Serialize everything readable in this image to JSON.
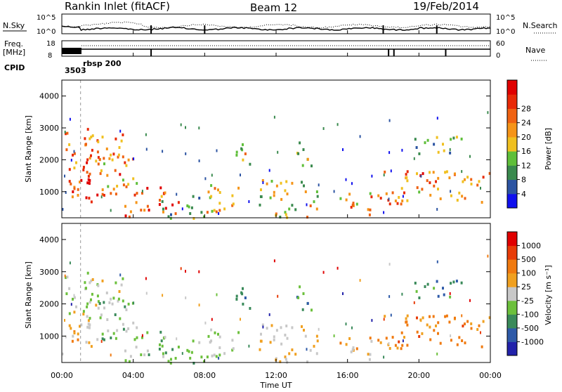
{
  "header": {
    "title": "Rankin Inlet (fitACF)",
    "beam": "Beam 12",
    "date": "19/Feb/2014"
  },
  "colors": {
    "ink": "#000000",
    "background": "#ffffff",
    "marker": "#9a9a9a"
  },
  "chart_data": [
    {
      "panel": "noise",
      "type": "line",
      "left_labels": [
        "N.Sky",
        "10^5",
        "10^0"
      ],
      "right_labels": [
        "10^5",
        "10^0",
        "N.Search"
      ],
      "series": [
        {
          "name": "N.Sky",
          "style": "solid"
        },
        {
          "name": "N.Search",
          "style": "dotted"
        }
      ]
    },
    {
      "panel": "frequency",
      "type": "line",
      "left_labels": [
        "Freq.",
        "[MHz]",
        "18",
        "8"
      ],
      "right_labels": [
        "60",
        "0",
        "Nave"
      ],
      "series": [
        {
          "name": "Freq.",
          "style": "solid"
        },
        {
          "name": "Nave",
          "style": "dotted"
        }
      ]
    },
    {
      "panel": "cpid",
      "type": "annotation",
      "label": "CPID",
      "entries": [
        {
          "time_h": 0.6,
          "text": "3503"
        },
        {
          "time_h": 1.0,
          "text": "rbsp  200"
        }
      ]
    },
    {
      "panel": "power",
      "type": "heatmap",
      "ylabel": "Slant Range [km]",
      "ylim": [
        180,
        4500
      ],
      "yticks": [
        "1000",
        "2000",
        "3000",
        "4000"
      ],
      "xlim": [
        0,
        24
      ],
      "colorbar_label": "Power [dB]",
      "colorbar_ticks": [
        "4",
        "8",
        "12",
        "16",
        "20",
        "24",
        "28"
      ],
      "colorbar_range": [
        0,
        30
      ],
      "colorbar_colors": [
        "#1010ee",
        "#2c54a2",
        "#3a8a4e",
        "#5fbf3a",
        "#f0c020",
        "#f59418",
        "#ef6212",
        "#e82a08",
        "#e00000"
      ]
    },
    {
      "panel": "velocity",
      "type": "heatmap",
      "ylabel": "Slant Range [km]",
      "ylim": [
        180,
        4500
      ],
      "yticks": [
        "1000",
        "2000",
        "3000",
        "4000"
      ],
      "xlim": [
        0,
        24
      ],
      "colorbar_label": "Velocity [m s⁻¹]",
      "colorbar_ticks": [
        "1000",
        "500",
        "100",
        "25",
        "-25",
        "-100",
        "-500",
        "-1000"
      ],
      "colorbar_colors": [
        "#2222aa",
        "#2e5aa8",
        "#3a8a5a",
        "#6cc03c",
        "#c8c8c8",
        "#f0a020",
        "#f07a10",
        "#e83c08",
        "#e00000"
      ]
    }
  ],
  "time_axis": {
    "xlabel": "Time UT",
    "ticks": [
      "00:00",
      "04:00",
      "08:00",
      "12:00",
      "16:00",
      "20:00",
      "00:00"
    ],
    "tick_hours": [
      0,
      4,
      8,
      12,
      16,
      20,
      24
    ]
  },
  "echo_regions": [
    {
      "t0": 0.0,
      "t1": 2.0,
      "r0": 700,
      "r1": 1900,
      "level": 0.85,
      "vel": -0.2
    },
    {
      "t0": 0.0,
      "t1": 3.5,
      "r0": 1500,
      "r1": 3000,
      "level": 0.7,
      "vel": 0.1
    },
    {
      "t0": 2.0,
      "t1": 4.2,
      "r0": 800,
      "r1": 2200,
      "level": 0.6,
      "vel": 0.2
    },
    {
      "t0": 3.5,
      "t1": 6.5,
      "r0": 200,
      "r1": 1200,
      "level": 0.85,
      "vel": 0.25
    },
    {
      "t0": 5.5,
      "t1": 8.0,
      "r0": 200,
      "r1": 900,
      "level": 0.35,
      "vel": 0.3
    },
    {
      "t0": 8.0,
      "t1": 10.0,
      "r0": 200,
      "r1": 1300,
      "level": 0.55,
      "vel": 0.1
    },
    {
      "t0": 9.5,
      "t1": 10.5,
      "r0": 1800,
      "r1": 2700,
      "level": 0.5,
      "vel": 0.6
    },
    {
      "t0": 11.0,
      "t1": 14.5,
      "r0": 200,
      "r1": 1400,
      "level": 0.5,
      "vel": -0.1
    },
    {
      "t0": 13.0,
      "t1": 14.0,
      "r0": 1700,
      "r1": 2700,
      "level": 0.45,
      "vel": 0.55
    },
    {
      "t0": 15.5,
      "t1": 17.5,
      "r0": 250,
      "r1": 1000,
      "level": 0.6,
      "vel": -0.2
    },
    {
      "t0": 17.5,
      "t1": 20.0,
      "r0": 600,
      "r1": 1700,
      "level": 0.65,
      "vel": -0.45
    },
    {
      "t0": 20.0,
      "t1": 24.0,
      "r0": 700,
      "r1": 1700,
      "level": 0.7,
      "vel": -0.4
    },
    {
      "t0": 19.5,
      "t1": 22.5,
      "r0": 2200,
      "r1": 2800,
      "level": 0.3,
      "vel": 0.5
    }
  ]
}
